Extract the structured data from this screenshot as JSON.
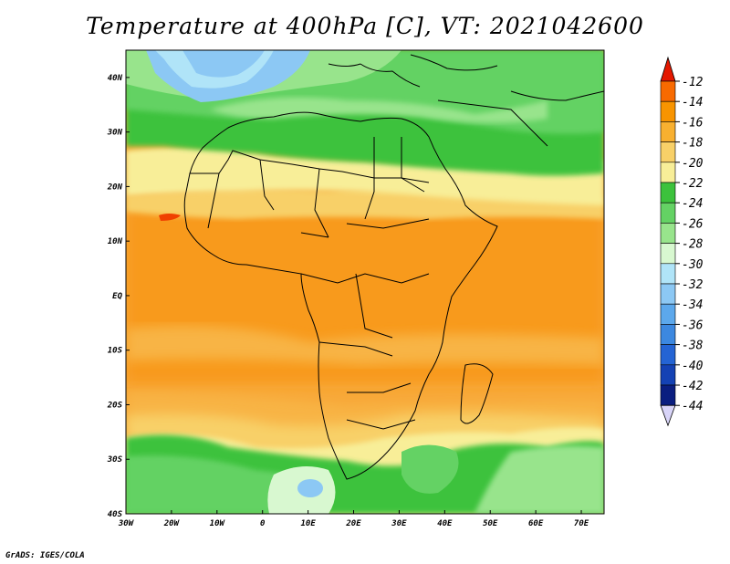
{
  "title": "Temperature at 400hPa [C], VT: 2021042600",
  "credit": "GrADS: IGES/COLA",
  "map": {
    "variable": "Temperature at 400hPa",
    "unit": "C",
    "valid_time": "2021042600",
    "extent": {
      "lon": [
        -30,
        75
      ],
      "lat": [
        -40,
        45
      ]
    },
    "lat_ticks": [
      {
        "value": 40,
        "label": "40N"
      },
      {
        "value": 30,
        "label": "30N"
      },
      {
        "value": 20,
        "label": "20N"
      },
      {
        "value": 10,
        "label": "10N"
      },
      {
        "value": 0,
        "label": "EQ"
      },
      {
        "value": -10,
        "label": "10S"
      },
      {
        "value": -20,
        "label": "20S"
      },
      {
        "value": -30,
        "label": "30S"
      },
      {
        "value": -40,
        "label": "40S"
      }
    ],
    "lon_ticks": [
      {
        "value": -30,
        "label": "30W"
      },
      {
        "value": -20,
        "label": "20W"
      },
      {
        "value": -10,
        "label": "10W"
      },
      {
        "value": 0,
        "label": "0"
      },
      {
        "value": 10,
        "label": "10E"
      },
      {
        "value": 20,
        "label": "20E"
      },
      {
        "value": 30,
        "label": "30E"
      },
      {
        "value": 40,
        "label": "40E"
      },
      {
        "value": 50,
        "label": "50E"
      },
      {
        "value": 60,
        "label": "60E"
      },
      {
        "value": 70,
        "label": "70E"
      }
    ]
  },
  "colorbar": {
    "labels": [
      "-12",
      "-14",
      "-16",
      "-18",
      "-20",
      "-22",
      "-24",
      "-26",
      "-28",
      "-30",
      "-32",
      "-34",
      "-36",
      "-38",
      "-40",
      "-42",
      "-44"
    ],
    "colors": [
      "#f04000",
      "#f86a00",
      "#f89400",
      "#f8b030",
      "#f8d068",
      "#f8ee98",
      "#3cc23c",
      "#64d264",
      "#98e48c",
      "#d8f8d0",
      "#b0e4f8",
      "#8cc8f4",
      "#5ca8ec",
      "#3c88e0",
      "#2464d4",
      "#1442b4",
      "#0a1e80"
    ],
    "top_arrow_color": "#e41800",
    "bottom_arrow_color": "#d8d4f8"
  }
}
